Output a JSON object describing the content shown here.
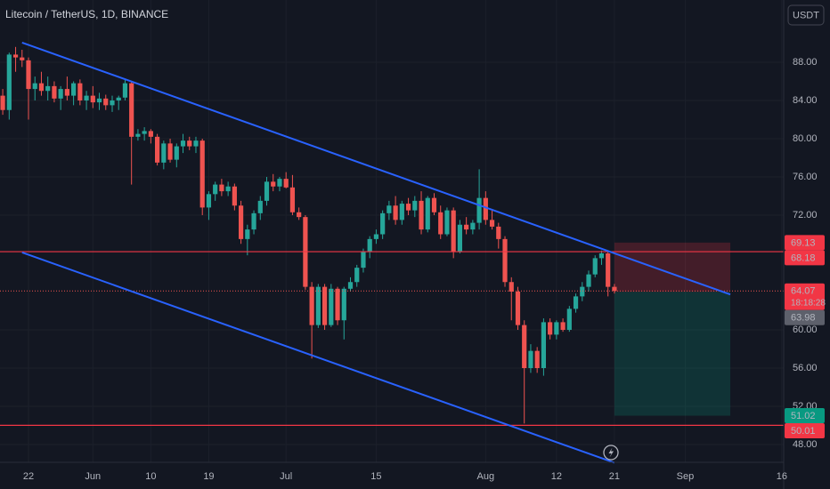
{
  "chart_data": {
    "type": "candlestick",
    "title": "Litecoin / TetherUS, 1D, BINANCE",
    "currency": "USDT",
    "countdown": "18:18:28",
    "categories": [
      null,
      null,
      null,
      null,
      "22",
      null,
      null,
      null,
      null,
      null,
      null,
      null,
      null,
      null,
      "Jun",
      null,
      null,
      null,
      null,
      null,
      null,
      null,
      null,
      "10",
      null,
      null,
      null,
      null,
      null,
      null,
      null,
      null,
      "19",
      null,
      null,
      null,
      null,
      null,
      null,
      null,
      null,
      null,
      null,
      null,
      "Jul",
      null,
      null,
      null,
      null,
      null,
      null,
      null,
      null,
      null,
      null,
      null,
      null,
      null,
      "15",
      null,
      null,
      null,
      null,
      null,
      null,
      null,
      null,
      null,
      null,
      null,
      null,
      null,
      null,
      null,
      null,
      "Aug",
      null,
      null,
      null,
      null,
      null,
      null,
      null,
      null,
      null,
      null,
      "12",
      null,
      null,
      null,
      null,
      null,
      null,
      null,
      null,
      "21",
      null,
      null,
      null,
      null,
      null,
      null,
      null,
      null,
      null,
      null,
      "Sep",
      null,
      null,
      null,
      null,
      null,
      null,
      null,
      null,
      null,
      null,
      null,
      null,
      null,
      null,
      "16"
    ],
    "open": [
      84.5,
      83.0,
      88.8,
      88.5,
      88.2,
      85.2,
      85.8,
      85.0,
      85.5,
      84.2,
      85.2,
      84.5,
      85.8,
      84.0,
      84.5,
      83.8,
      84.2,
      83.5,
      84.0,
      84.3,
      85.8,
      80.2,
      80.5,
      80.8,
      80.2,
      77.5,
      79.5,
      77.8,
      79.2,
      79.8,
      79.2,
      79.8,
      72.8,
      74.2,
      75.2,
      74.5,
      75.0,
      73.0,
      69.5,
      70.5,
      72.2,
      73.5,
      75.5,
      75.0,
      75.8,
      74.9,
      72.3,
      71.8,
      64.5,
      60.5,
      64.5,
      60.5,
      64.3,
      61.0,
      64.3,
      65.0,
      66.5,
      68.2,
      69.5,
      70.0,
      72.2,
      73.0,
      71.5,
      73.2,
      72.5,
      73.5,
      70.5,
      73.8,
      72.3,
      70.0,
      72.5,
      68.2,
      71.0,
      70.5,
      71.2,
      73.8,
      71.5,
      70.8,
      69.5,
      65.0,
      64.0,
      60.5,
      56.0,
      57.8,
      56.0,
      60.8,
      59.5,
      60.8,
      60.0,
      62.2,
      63.5,
      64.5,
      65.8,
      67.5,
      68.0,
      64.5,
      null,
      null,
      null,
      null,
      null,
      null,
      null,
      null,
      null,
      null,
      null,
      null,
      null,
      null,
      null,
      null,
      null,
      null,
      null,
      null,
      null,
      null,
      null,
      null,
      null,
      null
    ],
    "high": [
      85.2,
      89.0,
      89.6,
      89.3,
      88.5,
      86.5,
      87.0,
      86.5,
      86.0,
      85.5,
      86.5,
      86.0,
      86.2,
      85.0,
      85.5,
      84.8,
      84.6,
      84.5,
      84.5,
      86.2,
      86.0,
      81.0,
      81.2,
      81.0,
      80.5,
      79.8,
      80.0,
      79.5,
      80.5,
      80.2,
      80.2,
      80.0,
      74.5,
      75.5,
      75.8,
      75.5,
      75.3,
      73.5,
      71.0,
      72.5,
      74.0,
      76.0,
      76.3,
      76.0,
      76.5,
      76.2,
      72.8,
      72.0,
      65.0,
      64.8,
      64.8,
      64.8,
      64.5,
      64.5,
      65.5,
      66.8,
      68.5,
      69.8,
      70.5,
      72.5,
      73.5,
      74.0,
      73.5,
      73.8,
      74.0,
      74.5,
      74.0,
      74.3,
      73.0,
      72.8,
      72.8,
      71.5,
      71.8,
      71.5,
      76.8,
      74.5,
      72.5,
      71.2,
      69.8,
      65.5,
      64.5,
      61.0,
      58.5,
      58.2,
      61.2,
      61.2,
      61.0,
      61.2,
      62.5,
      63.8,
      65.0,
      66.2,
      67.8,
      68.3,
      68.2,
      64.8,
      null,
      null,
      null,
      null,
      null,
      null,
      null,
      null,
      null,
      null,
      null,
      null,
      null,
      null,
      null,
      null,
      null,
      null,
      null,
      null,
      null,
      null,
      null,
      null,
      null,
      null
    ],
    "low": [
      82.5,
      82.0,
      87.0,
      87.5,
      82.0,
      84.0,
      84.5,
      84.0,
      83.8,
      83.0,
      84.0,
      83.5,
      83.5,
      83.0,
      83.2,
      83.0,
      83.0,
      82.8,
      83.0,
      84.0,
      75.2,
      79.8,
      79.8,
      79.5,
      77.2,
      76.8,
      77.5,
      77.0,
      78.5,
      78.8,
      78.5,
      72.0,
      71.5,
      73.5,
      74.0,
      74.0,
      72.5,
      69.0,
      67.8,
      70.0,
      71.5,
      73.0,
      74.5,
      74.5,
      74.8,
      72.0,
      71.5,
      64.2,
      57.0,
      60.2,
      60.0,
      60.3,
      60.5,
      59.0,
      64.0,
      64.5,
      66.0,
      67.5,
      69.0,
      69.5,
      71.5,
      71.0,
      71.0,
      72.0,
      71.8,
      70.0,
      70.2,
      72.0,
      69.5,
      69.8,
      67.5,
      68.0,
      70.0,
      70.0,
      70.5,
      71.0,
      70.5,
      68.5,
      64.5,
      61.0,
      60.0,
      50.2,
      55.5,
      55.5,
      55.2,
      59.0,
      59.0,
      59.8,
      59.8,
      61.8,
      63.0,
      64.0,
      65.5,
      66.8,
      63.5,
      63.8,
      null,
      null,
      null,
      null,
      null,
      null,
      null,
      null,
      null,
      null,
      null,
      null,
      null,
      null,
      null,
      null,
      null,
      null,
      null,
      null,
      null,
      null,
      null,
      null,
      null,
      null
    ],
    "close": [
      83.0,
      88.8,
      88.5,
      88.2,
      85.2,
      85.8,
      85.0,
      85.5,
      84.2,
      85.2,
      84.5,
      85.8,
      84.0,
      84.5,
      83.8,
      84.2,
      83.5,
      84.0,
      84.3,
      85.8,
      80.2,
      80.5,
      80.8,
      80.2,
      77.5,
      79.5,
      77.8,
      79.2,
      79.8,
      79.2,
      79.8,
      72.8,
      74.2,
      75.2,
      74.5,
      75.0,
      73.0,
      69.5,
      70.5,
      72.2,
      73.5,
      75.5,
      75.0,
      75.8,
      74.9,
      72.3,
      71.8,
      64.5,
      60.5,
      64.5,
      60.5,
      64.3,
      61.0,
      64.3,
      65.0,
      66.5,
      68.2,
      69.5,
      70.0,
      72.2,
      73.0,
      71.5,
      73.2,
      72.5,
      73.5,
      70.5,
      73.8,
      72.3,
      70.0,
      72.5,
      68.2,
      71.0,
      70.5,
      71.2,
      73.8,
      71.5,
      70.8,
      69.5,
      65.0,
      64.0,
      60.5,
      56.0,
      57.8,
      56.0,
      60.8,
      59.5,
      60.8,
      60.0,
      62.2,
      63.5,
      64.5,
      65.8,
      67.5,
      68.0,
      64.5,
      64.07,
      null,
      null,
      null,
      null,
      null,
      null,
      null,
      null,
      null,
      null,
      null,
      null,
      null,
      null,
      null,
      null,
      null,
      null,
      null,
      null,
      null,
      null,
      null,
      null,
      null,
      null
    ],
    "up_color": "#26a69a",
    "down_color": "#ef5350",
    "ylim": [
      46.14,
      94.51
    ],
    "yticks": [
      {
        "value": 48,
        "label": "48.00"
      },
      {
        "value": 52,
        "label": "52.00"
      },
      {
        "value": 56,
        "label": "56.00"
      },
      {
        "value": 60,
        "label": "60.00"
      },
      {
        "value": 72,
        "label": "72.00"
      },
      {
        "value": 76,
        "label": "76.00"
      },
      {
        "value": 80,
        "label": "80.00"
      },
      {
        "value": 84,
        "label": "84.00"
      },
      {
        "value": 88,
        "label": "88.00"
      }
    ],
    "grid": true,
    "levels": [
      68.18,
      50.01
    ],
    "level_color": "#f23645",
    "trendlines": [
      {
        "points": [
          [
            3,
            90.05
          ],
          [
            113,
            63.7
          ]
        ]
      },
      {
        "points": [
          [
            3,
            68.1
          ],
          [
            95,
            46.1
          ]
        ]
      }
    ],
    "trendline_color": "#2962ff",
    "position": {
      "start": 95,
      "end": 113,
      "entry": 63.98,
      "stop": 69.13,
      "target": 51.02
    }
  }
}
